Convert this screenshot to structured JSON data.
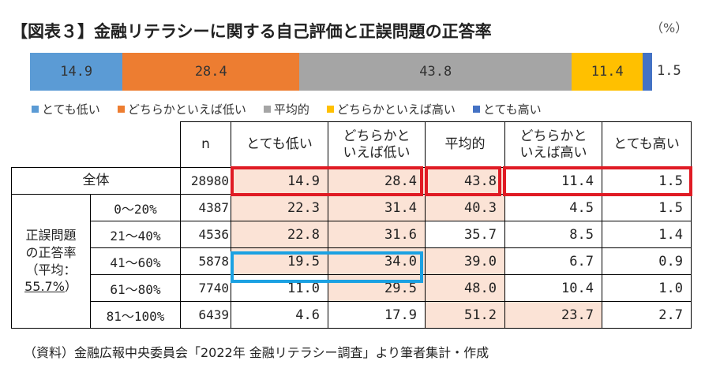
{
  "title": "【図表３】金融リテラシーに関する自己評価と正誤問題の正答率",
  "unit": "（%）",
  "chart_data": {
    "type": "bar",
    "orientation": "horizontal-stacked",
    "series": [
      {
        "name": "とても低い",
        "value": 14.9,
        "value_label": "14.9",
        "color": "#5b9bd5"
      },
      {
        "name": "どちらかといえば低い",
        "value": 28.4,
        "value_label": "28.4",
        "color": "#ed7d31"
      },
      {
        "name": "平均的",
        "value": 43.8,
        "value_label": "43.8",
        "color": "#a5a5a5"
      },
      {
        "name": "どちらかといえば高い",
        "value": 11.4,
        "value_label": "11.4",
        "color": "#ffc000"
      },
      {
        "name": "とても高い",
        "value": 1.5,
        "value_label": "1.5",
        "color": "#4472c4"
      }
    ],
    "legend_position": "bottom"
  },
  "table": {
    "headers": {
      "n": "n",
      "c1a": "とても低い",
      "c2a": "どちらかと",
      "c2b": "いえば低い",
      "c3a": "平均的",
      "c4a": "どちらかと",
      "c4b": "いえば高い",
      "c5a": "とても高い"
    },
    "total": {
      "label": "全体",
      "n": "28980",
      "v": [
        "14.9",
        "28.4",
        "43.8",
        "11.4",
        "1.5"
      ]
    },
    "group_label": {
      "l1": "正誤問題",
      "l2": "の正答率",
      "l3": "（平均：",
      "l4": "55.7%",
      "l5": "）"
    },
    "rows": [
      {
        "label": "0～20%",
        "n": "4387",
        "v": [
          "22.3",
          "31.4",
          "40.3",
          "4.5",
          "1.5"
        ]
      },
      {
        "label": "21～40%",
        "n": "4536",
        "v": [
          "22.8",
          "31.6",
          "35.7",
          "8.5",
          "1.4"
        ]
      },
      {
        "label": "41～60%",
        "n": "5878",
        "v": [
          "19.5",
          "34.0",
          "39.0",
          "6.7",
          "0.9"
        ]
      },
      {
        "label": "61～80%",
        "n": "7740",
        "v": [
          "11.0",
          "29.5",
          "48.0",
          "10.4",
          "1.0"
        ]
      },
      {
        "label": "81～100%",
        "n": "6439",
        "v": [
          "4.6",
          "17.9",
          "51.2",
          "23.7",
          "2.7"
        ]
      }
    ]
  },
  "source": "（資料）金融広報中央委員会「2022年 金融リテラシー調査」より筆者集計・作成"
}
